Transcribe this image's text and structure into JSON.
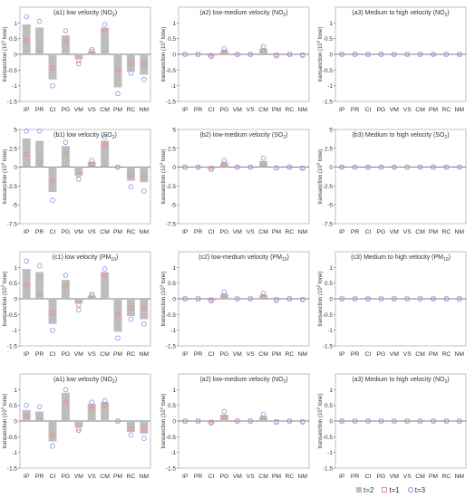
{
  "chart_data": [
    {
      "type": "bar",
      "title": "(a1) low velocity (NO",
      "title_sub": "2",
      "title_end": ")",
      "ylabel": "transanction (10",
      "ylabel_sup": "3",
      "ylabel_end": " tone)",
      "ylim": [
        -1.5,
        1.5
      ],
      "yticks": [
        -1.5,
        -1,
        -0.5,
        0,
        0.5,
        1
      ],
      "categories": [
        "IP",
        "PR",
        "CI",
        "PG",
        "VM",
        "VS",
        "CM",
        "PM",
        "RC",
        "NM"
      ],
      "series": [
        {
          "name": "t=2",
          "values": [
            0.95,
            0.85,
            -0.8,
            0.6,
            -0.15,
            0.1,
            0.85,
            -1.05,
            -0.55,
            -0.65
          ]
        },
        {
          "name": "t=1",
          "values": [
            0.45,
            0.15,
            -0.45,
            0.4,
            -0.2,
            0.1,
            0.75,
            -0.5,
            -0.3,
            -0.3
          ]
        },
        {
          "name": "t=3",
          "values": [
            1.2,
            1.05,
            -1.0,
            0.75,
            -0.3,
            0.15,
            0.95,
            -1.25,
            -0.6,
            -0.8
          ]
        }
      ]
    },
    {
      "type": "bar",
      "title": "(a2) low-medium velocity (NO",
      "title_sub": "2",
      "title_end": ")",
      "ylabel": "transanction (10",
      "ylabel_sup": "3",
      "ylabel_end": " tone)",
      "ylim": [
        -1.5,
        1.5
      ],
      "yticks": [
        -1.5,
        -1,
        -0.5,
        0,
        0.5,
        1
      ],
      "categories": [
        "IP",
        "PR",
        "CI",
        "PG",
        "VM",
        "VS",
        "CM",
        "PM",
        "RC",
        "NM"
      ],
      "series": [
        {
          "name": "t=2",
          "values": [
            0,
            0,
            -0.05,
            0.12,
            0,
            0,
            0.18,
            -0.03,
            0,
            -0.02
          ]
        },
        {
          "name": "t=1",
          "values": [
            0,
            0,
            -0.03,
            0.08,
            0,
            0,
            0.12,
            -0.02,
            0,
            -0.02
          ]
        },
        {
          "name": "t=3",
          "values": [
            0,
            0,
            -0.07,
            0.18,
            0,
            0,
            0.25,
            -0.05,
            0,
            -0.03
          ]
        }
      ]
    },
    {
      "type": "bar",
      "title": "(a3) Medium to high velocity (NO",
      "title_sub": "2",
      "title_end": ")",
      "ylabel": "transanction (10",
      "ylabel_sup": "3",
      "ylabel_end": " tone)",
      "ylim": [
        -1.5,
        1.5
      ],
      "yticks": [
        -1.5,
        -1,
        -0.5,
        0,
        0.5,
        1
      ],
      "categories": [
        "IP",
        "PR",
        "CI",
        "PG",
        "VM",
        "VS",
        "CM",
        "PM",
        "RC",
        "NM"
      ],
      "series": [
        {
          "name": "t=2",
          "values": [
            0,
            0,
            0,
            0,
            0,
            0,
            0,
            0,
            0,
            0
          ]
        },
        {
          "name": "t=1",
          "values": [
            0,
            0,
            0,
            0,
            0,
            0,
            0,
            0,
            0,
            0
          ]
        },
        {
          "name": "t=3",
          "values": [
            0,
            0,
            0,
            0,
            0,
            0,
            0,
            0,
            0,
            0
          ]
        }
      ]
    },
    {
      "type": "bar",
      "title": "(b1) low velocity (SO",
      "title_sub": "2",
      "title_end": ")",
      "ylabel": "transanction (10",
      "ylabel_sup": "3",
      "ylabel_end": " tone)",
      "ylim": [
        -7.5,
        5
      ],
      "yticks": [
        -7.5,
        -5,
        -2.5,
        0,
        2.5,
        5
      ],
      "categories": [
        "IP",
        "PR",
        "CI",
        "PG",
        "VM",
        "VS",
        "CM",
        "PM",
        "RC",
        "NM"
      ],
      "series": [
        {
          "name": "t=2",
          "values": [
            3.8,
            3.5,
            -3.3,
            2.8,
            -1.1,
            0.7,
            3.5,
            0,
            -1.8,
            -2.0
          ]
        },
        {
          "name": "t=1",
          "values": [
            1.7,
            0.7,
            -1.8,
            1.8,
            -1.0,
            0.4,
            3.0,
            0,
            -1.1,
            -1.3
          ]
        },
        {
          "name": "t=3",
          "values": [
            4.8,
            4.8,
            -4.4,
            3.3,
            -1.6,
            0.9,
            4.0,
            0,
            -2.6,
            -3.2
          ]
        }
      ]
    },
    {
      "type": "bar",
      "title": "(b2) low-medium velocity (SO",
      "title_sub": "2",
      "title_end": ")",
      "ylabel": "transanction (10",
      "ylabel_sup": "3",
      "ylabel_end": " tone)",
      "ylim": [
        -7.5,
        5
      ],
      "yticks": [
        -7.5,
        -5,
        -2.5,
        0,
        2.5,
        5
      ],
      "categories": [
        "IP",
        "PR",
        "CI",
        "PG",
        "VM",
        "VS",
        "CM",
        "PM",
        "RC",
        "NM"
      ],
      "series": [
        {
          "name": "t=2",
          "values": [
            0,
            0,
            -0.2,
            0.6,
            0,
            0,
            0.8,
            -0.1,
            0,
            -0.1
          ]
        },
        {
          "name": "t=1",
          "values": [
            0,
            0,
            -0.1,
            0.4,
            0,
            0,
            0.5,
            -0.1,
            0,
            -0.1
          ]
        },
        {
          "name": "t=3",
          "values": [
            0,
            0,
            -0.3,
            0.9,
            0,
            0,
            1.2,
            -0.1,
            0,
            -0.15
          ]
        }
      ]
    },
    {
      "type": "bar",
      "title": "(b3) Medium to high velocity (SO",
      "title_sub": "2",
      "title_end": ")",
      "ylabel": "transanction (10",
      "ylabel_sup": "3",
      "ylabel_end": " tone)",
      "ylim": [
        -7.5,
        5
      ],
      "yticks": [
        -7.5,
        -5,
        -2.5,
        0,
        2.5,
        5
      ],
      "categories": [
        "IP",
        "PR",
        "CI",
        "PG",
        "VM",
        "VS",
        "CM",
        "PM",
        "RC",
        "NM"
      ],
      "series": [
        {
          "name": "t=2",
          "values": [
            0,
            0,
            0,
            0,
            0,
            0,
            0,
            0,
            0,
            0
          ]
        },
        {
          "name": "t=1",
          "values": [
            0,
            0,
            0,
            0,
            0,
            0,
            0,
            0,
            0,
            0
          ]
        },
        {
          "name": "t=3",
          "values": [
            0,
            0,
            0,
            0,
            0,
            0,
            0,
            0,
            0,
            0
          ]
        }
      ]
    },
    {
      "type": "bar",
      "title": "(c1) low velocity (PM",
      "title_sub": "10",
      "title_end": ")",
      "ylabel": "transanction (10",
      "ylabel_sup": "3",
      "ylabel_end": " tone)",
      "ylim": [
        -1.5,
        1.5
      ],
      "yticks": [
        -1.5,
        -1,
        -0.5,
        0,
        0.5,
        1
      ],
      "categories": [
        "IP",
        "PR",
        "CI",
        "PG",
        "VM",
        "VS",
        "CM",
        "PM",
        "RC",
        "NM"
      ],
      "series": [
        {
          "name": "t=2",
          "values": [
            0.95,
            0.85,
            -0.8,
            0.6,
            -0.15,
            0.1,
            0.85,
            -1.05,
            -0.55,
            -0.65
          ]
        },
        {
          "name": "t=1",
          "values": [
            0.45,
            0.15,
            -0.45,
            0.4,
            -0.2,
            0.1,
            0.75,
            -0.5,
            -0.3,
            -0.3
          ]
        },
        {
          "name": "t=3",
          "values": [
            1.2,
            1.05,
            -1.0,
            0.75,
            -0.35,
            0.15,
            0.95,
            -1.25,
            -0.65,
            -0.8
          ]
        }
      ]
    },
    {
      "type": "bar",
      "title": "(c2) low-medium velocity (PM",
      "title_sub": "10",
      "title_end": ")",
      "ylabel": "transanction (10",
      "ylabel_sup": "3",
      "ylabel_end": " tone)",
      "ylim": [
        -1.5,
        1.5
      ],
      "yticks": [
        -1.5,
        -1,
        -0.5,
        0,
        0.5,
        1
      ],
      "categories": [
        "IP",
        "PR",
        "CI",
        "PG",
        "VM",
        "VS",
        "CM",
        "PM",
        "RC",
        "NM"
      ],
      "series": [
        {
          "name": "t=2",
          "values": [
            0,
            0,
            -0.05,
            0.15,
            0,
            0,
            0.12,
            -0.03,
            0,
            -0.02
          ]
        },
        {
          "name": "t=1",
          "values": [
            0,
            0,
            -0.03,
            0.1,
            0,
            0,
            0.08,
            -0.02,
            0,
            -0.02
          ]
        },
        {
          "name": "t=3",
          "values": [
            0,
            0,
            -0.07,
            0.22,
            0,
            0,
            0.18,
            -0.05,
            0,
            -0.03
          ]
        }
      ]
    },
    {
      "type": "bar",
      "title": "(c3) Medium to high velocity (PM",
      "title_sub": "10",
      "title_end": ")",
      "ylabel": "transanction (10",
      "ylabel_sup": "3",
      "ylabel_end": " tone)",
      "ylim": [
        -1.5,
        1.5
      ],
      "yticks": [
        -1.5,
        -1,
        -0.5,
        0,
        0.5,
        1
      ],
      "categories": [
        "IP",
        "PR",
        "CI",
        "PG",
        "VM",
        "VS",
        "CM",
        "PM",
        "RC",
        "NM"
      ],
      "series": [
        {
          "name": "t=2",
          "values": [
            0,
            0,
            0,
            0,
            0,
            0,
            0,
            0,
            0,
            0
          ]
        },
        {
          "name": "t=1",
          "values": [
            0,
            0,
            0,
            0,
            0,
            0,
            0,
            0,
            0,
            0
          ]
        },
        {
          "name": "t=3",
          "values": [
            0,
            0,
            0,
            0,
            0,
            0,
            0,
            0,
            0,
            0
          ]
        }
      ]
    },
    {
      "type": "bar",
      "title": "(a1) low velocity (NO",
      "title_sub": "2",
      "title_end": ")",
      "ylabel": "transanction (10",
      "ylabel_sup": "3",
      "ylabel_end": " tone)",
      "ylim": [
        -1.5,
        1.5
      ],
      "yticks": [
        -1.5,
        -1,
        -0.5,
        0,
        0.5,
        1
      ],
      "categories": [
        "IP",
        "PR",
        "CI",
        "PG",
        "VM",
        "VS",
        "CM",
        "PM",
        "RC",
        "NM"
      ],
      "series": [
        {
          "name": "t=2",
          "values": [
            0.35,
            0.3,
            -0.65,
            0.9,
            -0.2,
            0.55,
            0.6,
            0,
            -0.35,
            -0.4
          ]
        },
        {
          "name": "t=1",
          "values": [
            0.15,
            0.05,
            -0.45,
            0.6,
            -0.25,
            0.4,
            0.5,
            0,
            -0.25,
            -0.25
          ]
        },
        {
          "name": "t=3",
          "values": [
            0.5,
            0.45,
            -0.8,
            1.0,
            -0.3,
            0.6,
            0.65,
            0,
            -0.45,
            -0.55
          ]
        }
      ]
    },
    {
      "type": "bar",
      "title": "(a2) low-medium velocity (NO",
      "title_sub": "2",
      "title_end": ")",
      "ylabel": "transanction (10",
      "ylabel_sup": "3",
      "ylabel_end": " tone)",
      "ylim": [
        -1.5,
        1.5
      ],
      "yticks": [
        -1.5,
        -1,
        -0.5,
        0,
        0.5,
        1
      ],
      "categories": [
        "IP",
        "PR",
        "CI",
        "PG",
        "VM",
        "VS",
        "CM",
        "PM",
        "RC",
        "NM"
      ],
      "series": [
        {
          "name": "t=2",
          "values": [
            0,
            0,
            -0.05,
            0.2,
            0,
            0,
            0.15,
            -0.02,
            0,
            -0.02
          ]
        },
        {
          "name": "t=1",
          "values": [
            0,
            0,
            -0.03,
            0.12,
            0,
            0,
            0.1,
            -0.02,
            0,
            -0.02
          ]
        },
        {
          "name": "t=3",
          "values": [
            0,
            0,
            -0.07,
            0.3,
            0,
            0,
            0.22,
            -0.04,
            0,
            -0.03
          ]
        }
      ]
    },
    {
      "type": "bar",
      "title": "(a3) Medium to high velocity (NO",
      "title_sub": "2",
      "title_end": ")",
      "ylabel": "transanction (10",
      "ylabel_sup": "3",
      "ylabel_end": " tone)",
      "ylim": [
        -1.5,
        1.5
      ],
      "yticks": [
        -1.5,
        -1,
        -0.5,
        0,
        0.5,
        1
      ],
      "categories": [
        "IP",
        "PR",
        "CI",
        "PG",
        "VM",
        "VS",
        "CM",
        "PM",
        "RC",
        "NM"
      ],
      "series": [
        {
          "name": "t=2",
          "values": [
            0,
            0,
            0,
            0,
            0,
            0,
            0,
            0,
            0,
            0
          ]
        },
        {
          "name": "t=1",
          "values": [
            0,
            0,
            0,
            0,
            0,
            0,
            0,
            0,
            0,
            0
          ]
        },
        {
          "name": "t=3",
          "values": [
            0,
            0,
            0,
            0,
            0,
            0,
            0,
            0,
            0,
            0
          ]
        }
      ]
    }
  ],
  "legend": [
    {
      "label": "t=2",
      "marker": "gray-bar"
    },
    {
      "label": "t=1",
      "marker": "red-square"
    },
    {
      "label": "t=3",
      "marker": "blue-circle"
    }
  ],
  "colors": {
    "bar": "#bdbdbd",
    "t1": "#f08a8a",
    "t3": "#8c8cf0",
    "axis": "#555555",
    "text": "#333333"
  }
}
